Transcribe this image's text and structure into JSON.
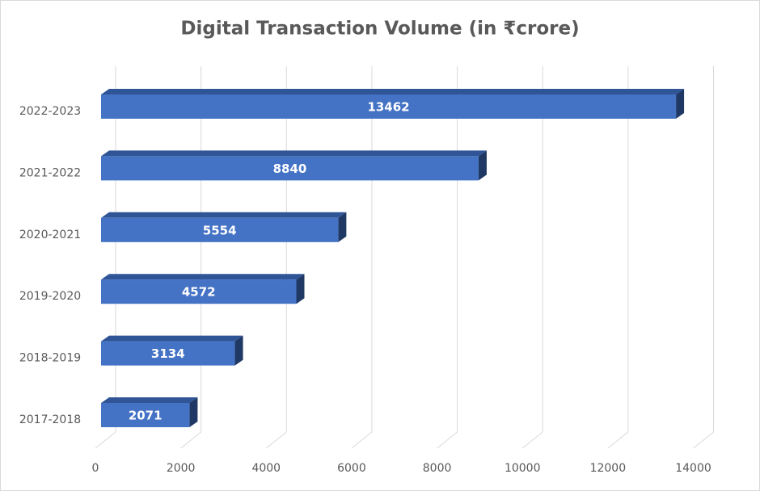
{
  "chart_data": {
    "type": "bar",
    "orientation": "horizontal",
    "title": "Digital Transaction Volume (in ₹crore)",
    "categories": [
      "2017-2018",
      "2018-2019",
      "2019-2020",
      "2020-2021",
      "2021-2022",
      "2022-2023"
    ],
    "values": [
      2071,
      3134,
      4572,
      5554,
      8840,
      13462
    ],
    "color": "#4472c4",
    "xlim": [
      0,
      14000
    ],
    "xticks": [
      0,
      2000,
      4000,
      6000,
      8000,
      10000,
      12000,
      14000
    ],
    "grid": true
  }
}
